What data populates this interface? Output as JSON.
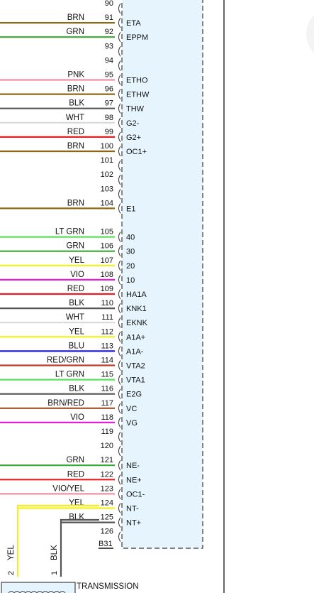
{
  "connector": {
    "id": "B31",
    "fill": "#e6f5fd",
    "border": "#555555"
  },
  "pins": [
    {
      "pin": "90",
      "color": "",
      "signal": "",
      "wire": ""
    },
    {
      "pin": "91",
      "color": "BRN",
      "signal": "ETA",
      "wire": "#8b6914"
    },
    {
      "pin": "92",
      "color": "GRN",
      "signal": "EPPM",
      "wire": "#3aa935"
    },
    {
      "pin": "93",
      "color": "",
      "signal": "",
      "wire": ""
    },
    {
      "pin": "94",
      "color": "",
      "signal": "",
      "wire": ""
    },
    {
      "pin": "95",
      "color": "PNK",
      "signal": "ETHO",
      "wire": "#f48fa4"
    },
    {
      "pin": "96",
      "color": "BRN",
      "signal": "ETHW",
      "wire": "#8b6914"
    },
    {
      "pin": "97",
      "color": "BLK",
      "signal": "THW",
      "wire": "#555555"
    },
    {
      "pin": "98",
      "color": "WHT",
      "signal": "G2-",
      "wire": "#d9d9d9"
    },
    {
      "pin": "99",
      "color": "RED",
      "signal": "G2+",
      "wire": "#e81e25"
    },
    {
      "pin": "100",
      "color": "BRN",
      "signal": "OC1+",
      "wire": "#8b6914"
    },
    {
      "pin": "101",
      "color": "",
      "signal": "",
      "wire": ""
    },
    {
      "pin": "102",
      "color": "",
      "signal": "",
      "wire": ""
    },
    {
      "pin": "103",
      "color": "",
      "signal": "",
      "wire": ""
    },
    {
      "pin": "104",
      "color": "BRN",
      "signal": "E1",
      "wire": "#8b6914"
    },
    {
      "pin": "",
      "color": "",
      "signal": "",
      "wire": ""
    },
    {
      "pin": "105",
      "color": "LT GRN",
      "signal": "40",
      "wire": "#59e25a"
    },
    {
      "pin": "106",
      "color": "GRN",
      "signal": "30",
      "wire": "#3aa935"
    },
    {
      "pin": "107",
      "color": "YEL",
      "signal": "20",
      "wire": "#f5ee1f"
    },
    {
      "pin": "108",
      "color": "VIO",
      "signal": "10",
      "wire": "#e01ee0"
    },
    {
      "pin": "109",
      "color": "RED",
      "signal": "HA1A",
      "wire": "#e81e25"
    },
    {
      "pin": "110",
      "color": "BLK",
      "signal": "KNK1",
      "wire": "#555555"
    },
    {
      "pin": "111",
      "color": "WHT",
      "signal": "EKNK",
      "wire": "#d9d9d9"
    },
    {
      "pin": "112",
      "color": "YEL",
      "signal": "A1A+",
      "wire": "#f5ee1f"
    },
    {
      "pin": "113",
      "color": "BLU",
      "signal": "A1A-",
      "wire": "#1c1ce0"
    },
    {
      "pin": "114",
      "color": "RED/GRN",
      "signal": "VTA2",
      "wire": "#c0392b"
    },
    {
      "pin": "115",
      "color": "LT GRN",
      "signal": "VTA1",
      "wire": "#59e25a"
    },
    {
      "pin": "116",
      "color": "BLK",
      "signal": "E2G",
      "wire": "#555555"
    },
    {
      "pin": "117",
      "color": "BRN/RED",
      "signal": "VC",
      "wire": "#a0522d"
    },
    {
      "pin": "118",
      "color": "VIO",
      "signal": "VG",
      "wire": "#e01ee0"
    },
    {
      "pin": "119",
      "color": "",
      "signal": "",
      "wire": ""
    },
    {
      "pin": "120",
      "color": "",
      "signal": "",
      "wire": ""
    },
    {
      "pin": "121",
      "color": "GRN",
      "signal": "NE-",
      "wire": "#3aa935"
    },
    {
      "pin": "122",
      "color": "RED",
      "signal": "NE+",
      "wire": "#e81e25"
    },
    {
      "pin": "123",
      "color": "VIO/YEL",
      "signal": "OC1-",
      "wire": "#f48fa4"
    },
    {
      "pin": "124",
      "color": "YEL",
      "signal": "NT-",
      "wire": "#f5ee1f"
    },
    {
      "pin": "125",
      "color": "BLK",
      "signal": "NT+",
      "wire": "#555555"
    },
    {
      "pin": "126",
      "color": "",
      "signal": "",
      "wire": ""
    }
  ],
  "transmission": {
    "label": "TRANSMISSION",
    "wires": [
      {
        "pin": "2",
        "color": "YEL",
        "wire": "#f5ee1f"
      },
      {
        "pin": "1",
        "color": "BLK",
        "wire": "#555555"
      }
    ]
  }
}
